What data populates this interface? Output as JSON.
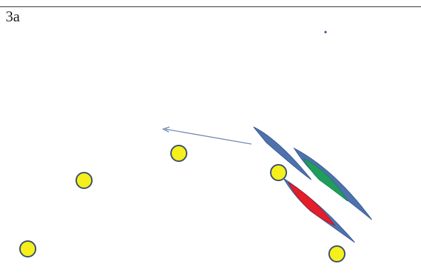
{
  "panel": {
    "label": "3a"
  },
  "colors": {
    "circle_fill": "#f5ef1c",
    "circle_stroke": "#3b4f6b",
    "blue": "#4e72ad",
    "green": "#1f9d5e",
    "red": "#e41d2a",
    "arrow": "#6f88b5",
    "dot": "#2a4fa0"
  }
}
